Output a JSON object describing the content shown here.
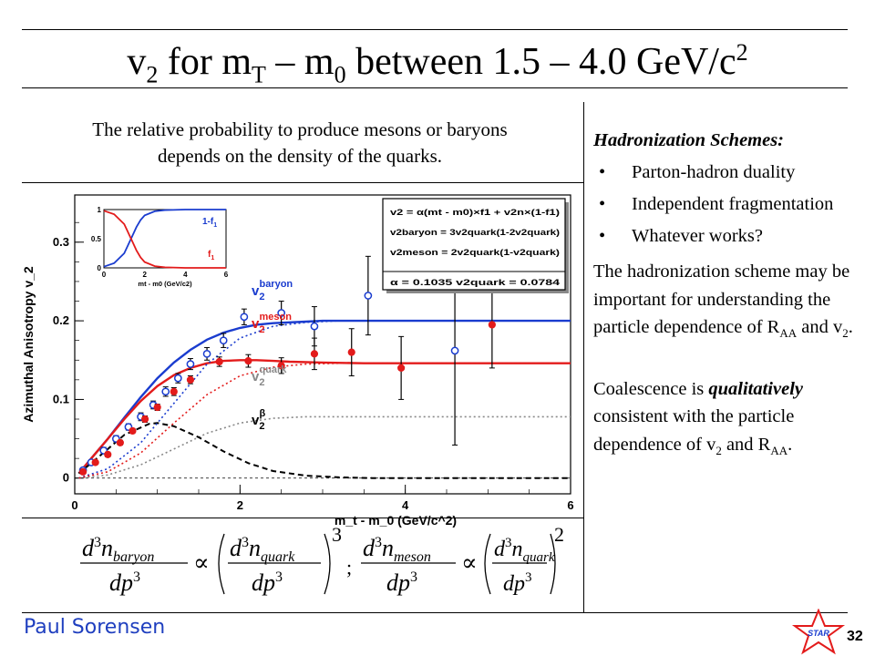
{
  "slide": {
    "title_main": "v",
    "title_sub2": "2",
    "title_mid": " for m",
    "title_subT": "T",
    "title_dash": " – m",
    "title_sub0": "0",
    "title_rest": " between 1.5 – 4.0 GeV/c",
    "title_sup2": "2",
    "intro_line1": "The relative probability to produce mesons or baryons",
    "intro_line2": "depends on the density of the quarks.",
    "author": "Paul Sorensen",
    "page_number": "32",
    "logo_text": "STAR"
  },
  "side": {
    "heading": "Hadronization Schemes:",
    "bullets": [
      "Parton-hadron duality",
      "Independent fragmentation",
      "Whatever works?"
    ],
    "p1_a": "The hadronization scheme may be important for understanding the particle dependence of R",
    "p1_sub_aa": "AA",
    "p1_b": " and v",
    "p1_sub_2": "2",
    "p1_c": ".",
    "p2_a": "Coalescence is ",
    "p2_em": "qualitatively",
    "p2_b": " consistent with the particle dependence of v",
    "p2_sub_2": "2",
    "p2_c": " and R",
    "p2_sub_aa": "AA",
    "p2_d": "."
  },
  "formula": {
    "d3": "d",
    "n": "n",
    "baryon": "baryon",
    "quark": "quark",
    "meson": "meson",
    "dp3": "dp",
    "exp3": "3",
    "exp2": "2",
    "propto": "∝",
    "sep": ";"
  },
  "chart_data": [
    {
      "type": "line",
      "xlabel": "m_t - m_0 (GeV/c^2)",
      "ylabel": "Azimuthal Anisotropy v_2",
      "xlim": [
        0,
        6
      ],
      "ylim": [
        -0.02,
        0.36
      ],
      "x_ticks": [
        "0",
        "2",
        "4",
        "6"
      ],
      "y_ticks": [
        "0",
        "0.1",
        "0.2",
        "0.3"
      ],
      "grid": false,
      "series": [
        {
          "name": "v2 baryon",
          "color": "#1a3ccf",
          "style": "solid",
          "x": [
            0.05,
            0.2,
            0.4,
            0.6,
            0.8,
            1.0,
            1.2,
            1.4,
            1.6,
            1.8,
            2.0,
            2.2,
            2.4,
            2.6,
            2.8,
            3.0,
            3.5,
            4.0,
            4.5,
            5.0,
            5.5,
            6.0
          ],
          "y": [
            0.006,
            0.025,
            0.05,
            0.077,
            0.103,
            0.127,
            0.147,
            0.163,
            0.176,
            0.185,
            0.191,
            0.195,
            0.197,
            0.198,
            0.199,
            0.2,
            0.2,
            0.2,
            0.2,
            0.2,
            0.2,
            0.2
          ]
        },
        {
          "name": "v2 meson",
          "color": "#e31b1b",
          "style": "solid",
          "x": [
            0.05,
            0.2,
            0.4,
            0.6,
            0.8,
            1.0,
            1.2,
            1.4,
            1.6,
            1.8,
            2.0,
            2.2,
            2.4,
            2.6,
            3.0,
            3.5,
            4.0,
            4.5,
            5.0,
            5.5,
            6.0
          ],
          "y": [
            0.006,
            0.025,
            0.05,
            0.075,
            0.098,
            0.117,
            0.131,
            0.14,
            0.146,
            0.149,
            0.15,
            0.15,
            0.149,
            0.148,
            0.147,
            0.146,
            0.146,
            0.146,
            0.146,
            0.146,
            0.146
          ]
        },
        {
          "name": "v2 quark",
          "color": "#888888",
          "style": "dotted",
          "x": [
            0.05,
            0.4,
            0.8,
            1.2,
            1.6,
            2.0,
            2.4,
            2.8,
            3.2,
            4.0,
            5.0,
            6.0
          ],
          "y": [
            0.0,
            0.004,
            0.017,
            0.037,
            0.057,
            0.07,
            0.076,
            0.078,
            0.078,
            0.078,
            0.078,
            0.078
          ]
        },
        {
          "name": "v2 beta",
          "color": "#000000",
          "style": "dashed",
          "x": [
            0.05,
            0.3,
            0.6,
            0.9,
            1.0,
            1.2,
            1.5,
            1.8,
            2.1,
            2.4,
            2.8,
            3.2,
            3.6,
            4.0,
            5.0,
            6.0
          ],
          "y": [
            0.006,
            0.028,
            0.055,
            0.069,
            0.07,
            0.066,
            0.052,
            0.034,
            0.019,
            0.009,
            0.003,
            0.001,
            0.0,
            0.0,
            0.0,
            0.0
          ]
        },
        {
          "name": "baryon dotted",
          "color": "#1a3ccf",
          "style": "dotted",
          "x": [
            0.05,
            0.4,
            0.8,
            1.2,
            1.6,
            2.0,
            2.4,
            2.8,
            3.2,
            3.6,
            4.0,
            5.0,
            6.0
          ],
          "y": [
            0.0,
            0.012,
            0.045,
            0.095,
            0.145,
            0.178,
            0.193,
            0.198,
            0.2,
            0.2,
            0.2,
            0.2,
            0.2
          ]
        },
        {
          "name": "meson dotted",
          "color": "#e31b1b",
          "style": "dotted",
          "x": [
            0.05,
            0.4,
            0.8,
            1.2,
            1.6,
            2.0,
            2.4,
            2.8,
            3.2,
            4.0,
            5.0,
            6.0
          ],
          "y": [
            0.0,
            0.008,
            0.032,
            0.07,
            0.106,
            0.13,
            0.141,
            0.145,
            0.146,
            0.146,
            0.146,
            0.146
          ]
        }
      ],
      "points": [
        {
          "name": "baryon data",
          "color": "#1a3ccf",
          "marker": "open-circle",
          "x": [
            0.1,
            0.2,
            0.35,
            0.5,
            0.65,
            0.8,
            0.95,
            1.1,
            1.25,
            1.4,
            1.6,
            1.8,
            2.05,
            2.5,
            2.9,
            3.55,
            4.6
          ],
          "y": [
            0.01,
            0.02,
            0.035,
            0.05,
            0.065,
            0.078,
            0.093,
            0.11,
            0.127,
            0.145,
            0.158,
            0.175,
            0.205,
            0.21,
            0.193,
            0.232,
            0.162
          ],
          "err": [
            0.003,
            0.003,
            0.004,
            0.004,
            0.004,
            0.005,
            0.005,
            0.006,
            0.006,
            0.007,
            0.008,
            0.009,
            0.01,
            0.015,
            0.025,
            0.05,
            0.12
          ]
        },
        {
          "name": "meson data",
          "color": "#e31b1b",
          "marker": "filled-circle",
          "x": [
            0.1,
            0.25,
            0.4,
            0.55,
            0.7,
            0.85,
            1.0,
            1.2,
            1.4,
            1.75,
            2.1,
            2.5,
            2.9,
            3.35,
            3.95,
            5.05
          ],
          "y": [
            0.008,
            0.02,
            0.03,
            0.045,
            0.06,
            0.075,
            0.09,
            0.11,
            0.125,
            0.148,
            0.149,
            0.143,
            0.158,
            0.16,
            0.14,
            0.195
          ],
          "err": [
            0.002,
            0.002,
            0.003,
            0.003,
            0.003,
            0.004,
            0.004,
            0.005,
            0.005,
            0.006,
            0.008,
            0.01,
            0.02,
            0.03,
            0.04,
            0.055
          ]
        }
      ],
      "labels": {
        "baryon": "v2 baryon",
        "meson": "v2 meson",
        "quark": "v2 quark",
        "beta": "v2 β"
      },
      "label_parts": {
        "v": "v",
        "sub2": "2",
        "baryon": "baryon",
        "meson": "meson",
        "quark": "quark",
        "beta": "β"
      },
      "box_lines": [
        "v2 = α(mt - m0)×f1 + v2n×(1-f1)",
        "v2baryon = 3v2quark(1-2v2quark)",
        "v2meson = 2v2quark(1-v2quark)",
        "α = 0.1035    v2quark = 0.0784"
      ]
    },
    {
      "type": "line",
      "xlabel": "mt - m0 (GeV/c2)",
      "ylabel": "",
      "xlim": [
        0,
        6
      ],
      "ylim": [
        0,
        1
      ],
      "x_ticks": [
        "0",
        "2",
        "4",
        "6"
      ],
      "y_ticks": [
        "0",
        "0.5",
        "1"
      ],
      "series": [
        {
          "name": "1-f1",
          "color": "#1a3ccf",
          "x": [
            0,
            0.5,
            1,
            1.2,
            1.4,
            1.6,
            1.8,
            2,
            2.5,
            3,
            4,
            5,
            6
          ],
          "y": [
            0.02,
            0.08,
            0.25,
            0.4,
            0.55,
            0.7,
            0.82,
            0.9,
            0.97,
            0.99,
            1,
            1,
            1
          ]
        },
        {
          "name": "f1",
          "color": "#e31b1b",
          "x": [
            0,
            0.5,
            1,
            1.2,
            1.4,
            1.6,
            1.8,
            2,
            2.5,
            3,
            4,
            5,
            6
          ],
          "y": [
            0.98,
            0.92,
            0.75,
            0.6,
            0.45,
            0.3,
            0.18,
            0.1,
            0.03,
            0.01,
            0,
            0,
            0
          ]
        }
      ],
      "inset_labels": {
        "one_minus_f1": "1-f",
        "f1": "f",
        "sub1": "1"
      }
    }
  ]
}
